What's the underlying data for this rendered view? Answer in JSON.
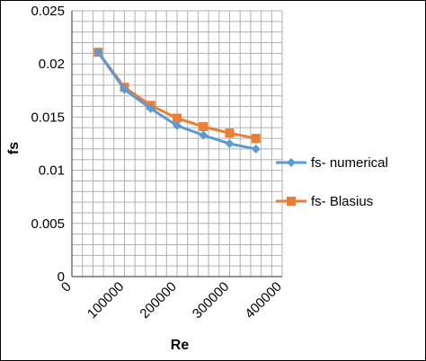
{
  "chart_data": {
    "type": "line",
    "xlabel": "Re",
    "ylabel": "fs",
    "xlim": [
      0,
      400000
    ],
    "ylim": [
      0,
      0.025
    ],
    "x_ticks": [
      "0",
      "100000",
      "200000",
      "300000",
      "400000"
    ],
    "y_ticks": [
      "0",
      "0.005",
      "0.01",
      "0.015",
      "0.02",
      "0.025"
    ],
    "grid": true,
    "legend_position": "right",
    "series": [
      {
        "name": "fs- numerical",
        "color": "#5B9BD5",
        "marker": "diamond",
        "x": [
          50000,
          100000,
          150000,
          200000,
          250000,
          300000,
          350000
        ],
        "y": [
          0.0211,
          0.0176,
          0.0158,
          0.0142,
          0.0133,
          0.0125,
          0.012
        ]
      },
      {
        "name": "fs- Blasius",
        "color": "#ED7D31",
        "marker": "square",
        "x": [
          50000,
          100000,
          150000,
          200000,
          250000,
          300000,
          350000
        ],
        "y": [
          0.0211,
          0.0178,
          0.0161,
          0.0149,
          0.0141,
          0.0135,
          0.013
        ]
      }
    ]
  }
}
